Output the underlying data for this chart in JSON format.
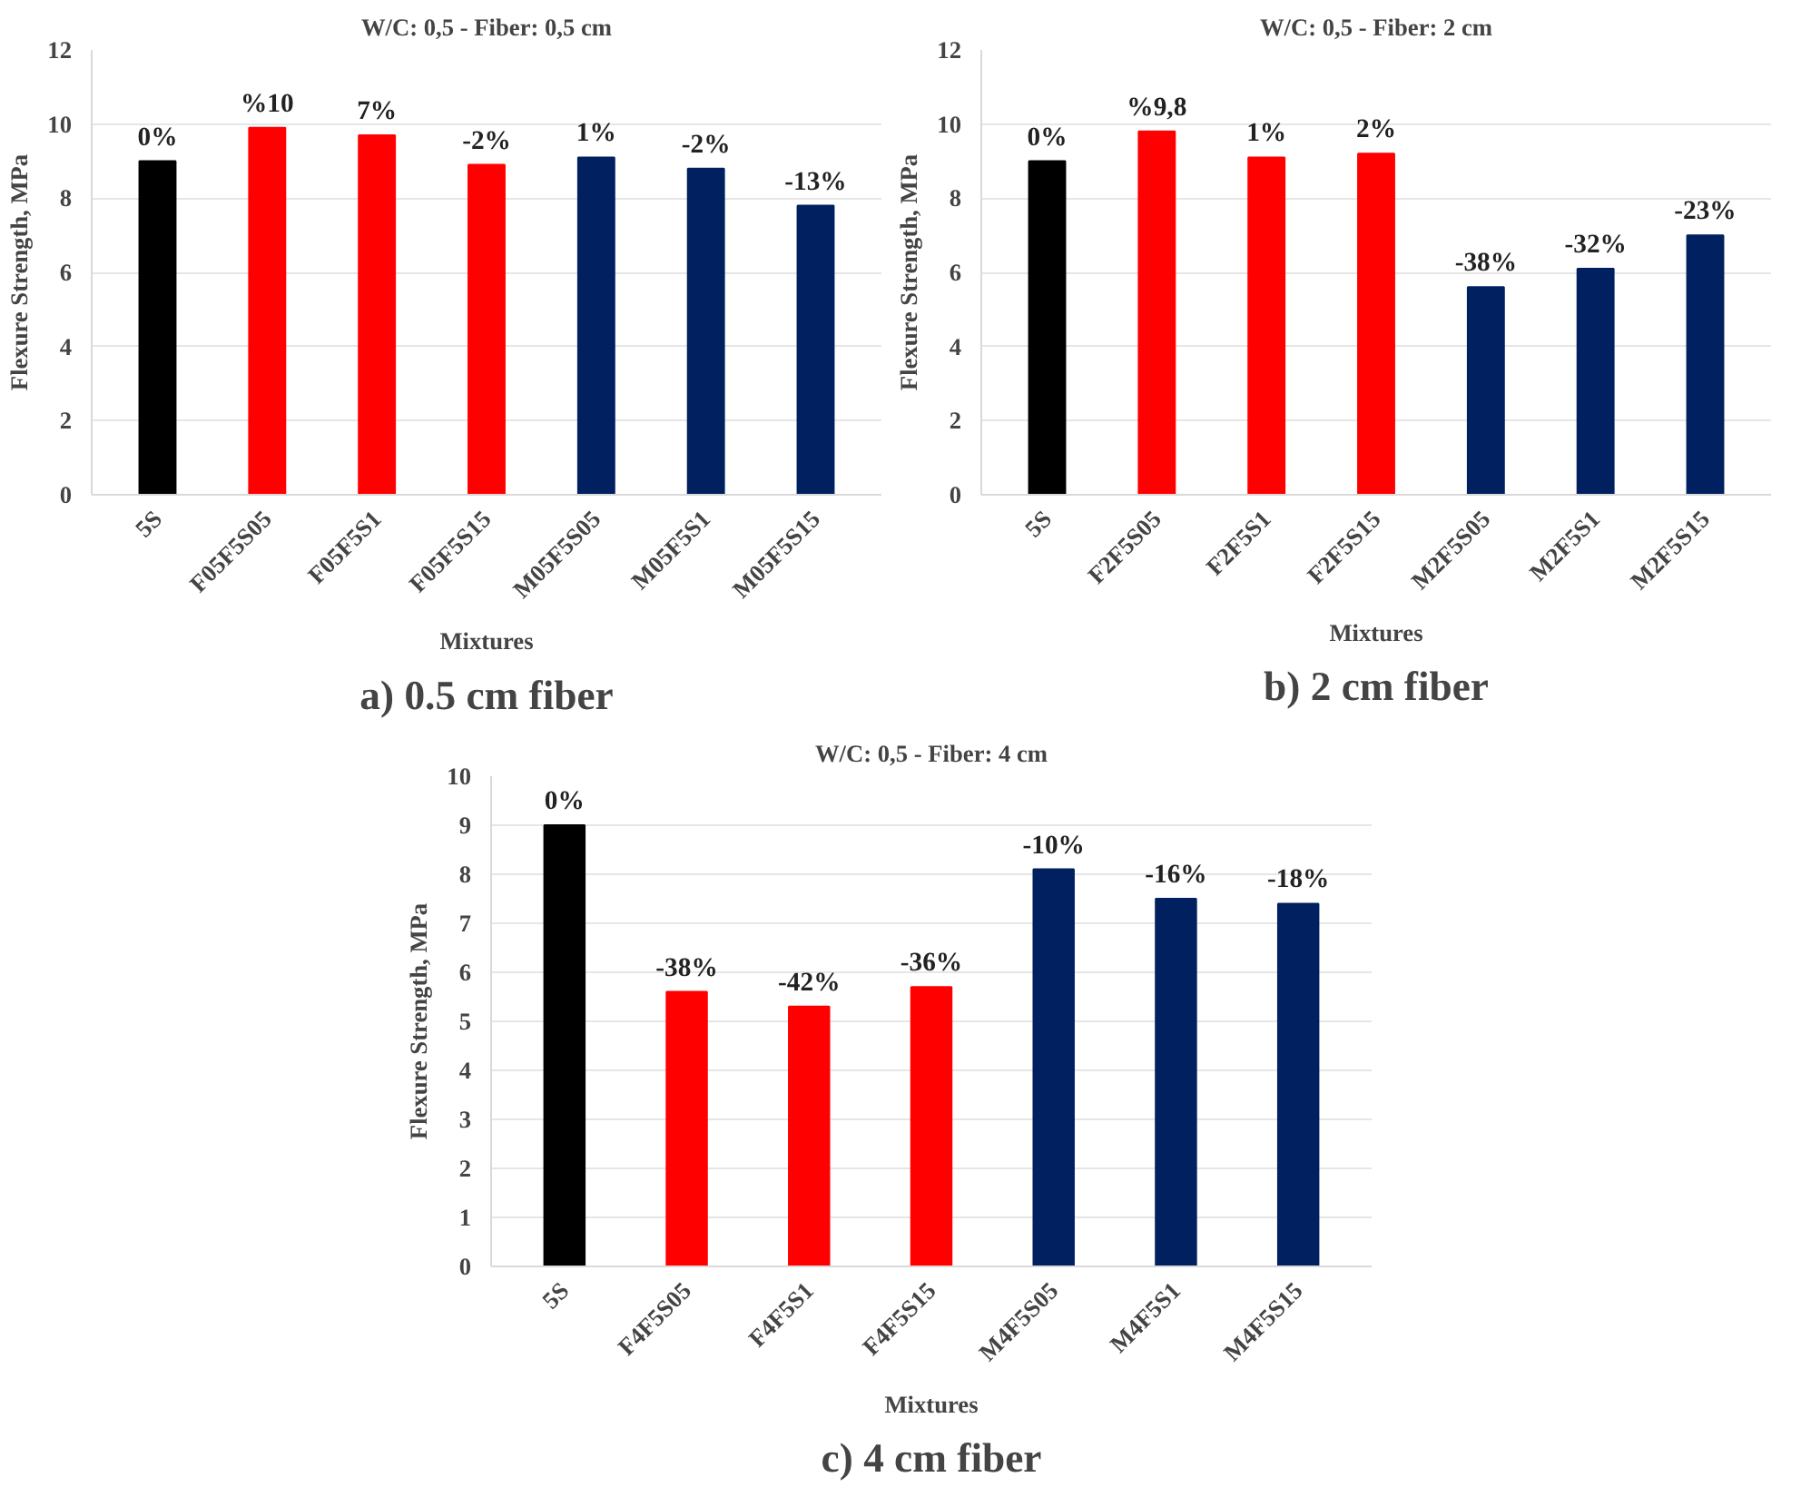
{
  "chart_data": [
    {
      "type": "bar",
      "title": "W/C: 0,5 - Fiber: 0,5 cm",
      "xlabel": "Mixtures",
      "ylabel": "Flexure Strength, MPa",
      "categories": [
        "5S",
        "F05F5S05",
        "F05F5S1",
        "F05F5S15",
        "M05F5S05",
        "M05F5S1",
        "M05F5S15"
      ],
      "values": [
        9.0,
        9.9,
        9.7,
        8.9,
        9.1,
        8.8,
        7.8
      ],
      "colors": [
        "#000000",
        "#ff0000",
        "#ff0000",
        "#ff0000",
        "#002060",
        "#002060",
        "#002060"
      ],
      "ylim": [
        0,
        12
      ],
      "yticks": [
        0,
        2,
        4,
        6,
        8,
        10,
        12
      ],
      "grid": "y",
      "annotations": [
        {
          "text": "0%",
          "x": "5S",
          "y": 9.0
        },
        {
          "text": "%10",
          "x": "F05F5S05",
          "y": 9.9
        },
        {
          "text": "7%",
          "x": "F05F5S1",
          "y": 9.7
        },
        {
          "text": "-2%",
          "x": "F05F5S15",
          "y": 8.9
        },
        {
          "text": "1%",
          "x": "M05F5S05",
          "y": 9.1
        },
        {
          "text": "-2%",
          "x": "M05F5S1",
          "y": 8.8
        },
        {
          "text": "-13%",
          "x": "M05F5S15",
          "y": 7.8
        },
        "a) 0.5 cm fiber"
      ]
    },
    {
      "type": "bar",
      "title": "W/C: 0,5 - Fiber: 2 cm",
      "xlabel": "Mixtures",
      "ylabel": "Flexure Strength, MPa",
      "categories": [
        "5S",
        "F2F5S05",
        "F2F5S1",
        "F2F5S15",
        "M2F5S05",
        "M2F5S1",
        "M2F5S15"
      ],
      "values": [
        9.0,
        9.8,
        9.1,
        9.2,
        5.6,
        6.1,
        7.0
      ],
      "colors": [
        "#000000",
        "#ff0000",
        "#ff0000",
        "#ff0000",
        "#002060",
        "#002060",
        "#002060"
      ],
      "ylim": [
        0,
        12
      ],
      "yticks": [
        0,
        2,
        4,
        6,
        8,
        10,
        12
      ],
      "grid": "y",
      "annotations": [
        {
          "text": "0%",
          "x": "5S",
          "y": 9.0
        },
        {
          "text": "%9,8",
          "x": "F2F5S05",
          "y": 9.8
        },
        {
          "text": "1%",
          "x": "F2F5S1",
          "y": 9.1
        },
        {
          "text": "2%",
          "x": "F2F5S15",
          "y": 9.2
        },
        {
          "text": "-38%",
          "x": "M2F5S05",
          "y": 5.6
        },
        {
          "text": "-32%",
          "x": "M2F5S1",
          "y": 6.1
        },
        {
          "text": "-23%",
          "x": "M2F5S15",
          "y": 7.0
        },
        "b) 2 cm fiber"
      ]
    },
    {
      "type": "bar",
      "title": "W/C: 0,5 - Fiber: 4 cm",
      "xlabel": "Mixtures",
      "ylabel": "Flexure Strength, MPa",
      "categories": [
        "5S",
        "F4F5S05",
        "F4F5S1",
        "F4F5S15",
        "M4F5S05",
        "M4F5S1",
        "M4F5S15"
      ],
      "values": [
        9.0,
        5.6,
        5.3,
        5.7,
        8.1,
        7.5,
        7.4
      ],
      "colors": [
        "#000000",
        "#ff0000",
        "#ff0000",
        "#ff0000",
        "#002060",
        "#002060",
        "#002060"
      ],
      "ylim": [
        0,
        10
      ],
      "yticks": [
        0,
        1,
        2,
        3,
        4,
        5,
        6,
        7,
        8,
        9,
        10
      ],
      "grid": "y",
      "annotations": [
        {
          "text": "0%",
          "x": "5S",
          "y": 9.0
        },
        {
          "text": "-38%",
          "x": "F4F5S05",
          "y": 5.6
        },
        {
          "text": "-42%",
          "x": "F4F5S1",
          "y": 5.3
        },
        {
          "text": "-36%",
          "x": "F4F5S15",
          "y": 5.7
        },
        {
          "text": "-10%",
          "x": "M4F5S05",
          "y": 8.1
        },
        {
          "text": "-16%",
          "x": "M4F5S1",
          "y": 7.5
        },
        {
          "text": "-18%",
          "x": "M4F5S15",
          "y": 7.4
        },
        "c) 4 cm fiber"
      ]
    }
  ]
}
